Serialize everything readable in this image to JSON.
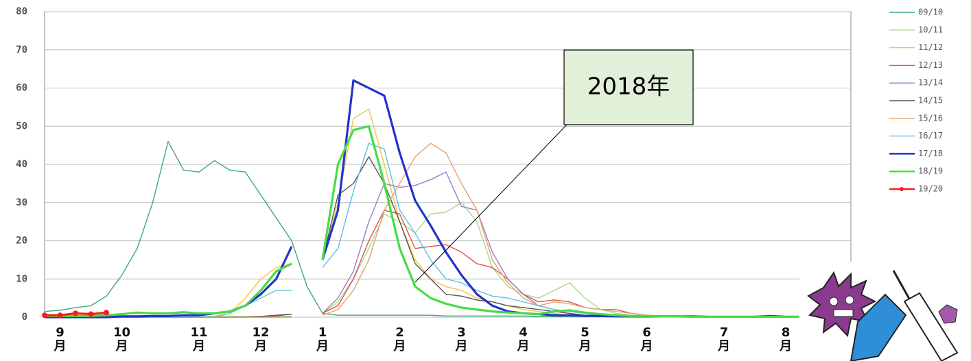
{
  "chart_data": {
    "type": "line",
    "categories": [
      null,
      "9\n月",
      null,
      null,
      null,
      "10\n月",
      null,
      null,
      null,
      null,
      "11\n月",
      null,
      null,
      null,
      "12\n月",
      null,
      null,
      null,
      "1\n月",
      null,
      null,
      null,
      null,
      "2\n月",
      null,
      null,
      null,
      "3\n月",
      null,
      null,
      null,
      "4\n月",
      null,
      null,
      null,
      "5\n月",
      null,
      null,
      null,
      "6\n月",
      null,
      null,
      null,
      null,
      "7\n月",
      null,
      null,
      null,
      "8\n月",
      null,
      null,
      null,
      null
    ],
    "ylim": [
      0,
      80
    ],
    "yticks": [
      0,
      10,
      20,
      30,
      40,
      50,
      60,
      70,
      80
    ],
    "grid": true,
    "annotation": "2018年",
    "series": [
      {
        "name": "09/10",
        "color": "#3aa97f",
        "line_width": 1.4,
        "values": [
          1.5,
          1.8,
          2.5,
          3,
          5.5,
          11,
          18,
          30,
          46,
          38.5,
          38,
          41,
          38.5,
          38,
          32,
          26,
          20,
          8,
          1,
          0.5,
          0.5,
          0.5,
          0.5,
          0.5,
          0.5,
          0.5,
          0.3,
          0.3,
          0.3,
          0.3,
          0.3,
          0.3,
          0.2,
          0.2,
          0.2,
          0.2,
          0.2,
          0.2,
          0.2,
          0.2,
          0.2,
          0.2,
          0.2,
          0.1,
          0.1,
          0.1,
          0.1,
          0.1,
          0.1,
          0.1,
          0.1,
          0.1,
          0.1
        ]
      },
      {
        "name": "10/11",
        "color": "#a8d88a",
        "line_width": 1.4,
        "values": [
          0.2,
          0.2,
          0.2,
          0.2,
          0.2,
          0.2,
          0.2,
          0.2,
          0.2,
          0.2,
          0.2,
          0.2,
          0.2,
          0.2,
          0.2,
          0.2,
          0.2,
          null,
          1,
          4,
          10,
          18,
          27,
          25,
          22,
          27,
          27.5,
          30,
          25,
          13,
          8,
          6,
          5,
          7,
          9,
          5,
          2,
          1,
          0.5,
          0.3,
          0.3,
          0.2,
          0.2,
          0.2,
          0.2,
          0.1,
          0.1,
          0.1,
          0.1,
          0.1,
          0.1,
          0.1,
          0.1
        ]
      },
      {
        "name": "11/12",
        "color": "#f5c242",
        "line_width": 1.4,
        "values": [
          0,
          0,
          0,
          0,
          0,
          0,
          0,
          0,
          0,
          0,
          0,
          0.3,
          1,
          5,
          10,
          13,
          14,
          null,
          15,
          30,
          52,
          54.5,
          40,
          25,
          15,
          10,
          8,
          7,
          5,
          4,
          3,
          2,
          1.5,
          1,
          0.5,
          0.5,
          0.3,
          0.3,
          0.2,
          0.2,
          0.2,
          0.2,
          0.1,
          0.1,
          0.1,
          0.1,
          0.1,
          0.1,
          0.1,
          0.1,
          0.1,
          0.1,
          0.1
        ]
      },
      {
        "name": "12/13",
        "color": "#d9534f",
        "line_width": 1.4,
        "values": [
          0,
          0,
          0,
          0,
          0,
          0,
          0,
          0,
          0,
          0,
          0,
          0,
          0,
          0,
          0.2,
          0.3,
          0.8,
          null,
          1,
          3,
          10,
          20,
          28,
          27,
          18,
          18.5,
          19,
          17,
          14,
          13,
          10,
          6,
          4,
          4.5,
          4,
          2.5,
          2,
          2,
          1,
          0.5,
          0.3,
          0.3,
          0.2,
          0.2,
          0.2,
          0.1,
          0.1,
          0.1,
          0.1,
          0.1,
          0.1,
          0.1,
          0.1
        ]
      },
      {
        "name": "13/14",
        "color": "#a07cc5",
        "line_width": 1.4,
        "values": [
          0,
          0,
          0,
          0,
          0,
          0,
          0,
          0,
          0,
          0,
          0,
          0,
          0,
          0,
          0,
          0,
          0,
          null,
          1,
          5,
          12,
          25,
          35,
          34,
          34.5,
          36,
          38,
          29,
          28,
          17,
          10,
          6,
          3,
          2,
          1.5,
          1,
          0.5,
          0.3,
          0.3,
          0.2,
          0.2,
          0.2,
          0.1,
          0.1,
          0.1,
          0.1,
          0.1,
          0.1,
          0.1,
          0.1,
          0.1,
          0.1,
          0.1
        ]
      },
      {
        "name": "14/15",
        "color": "#555555",
        "line_width": 1.4,
        "values": [
          0,
          0,
          0,
          0,
          0,
          0,
          0,
          0,
          0,
          0,
          0,
          0,
          0,
          0,
          0.2,
          0.5,
          0.8,
          null,
          15,
          32,
          35,
          42,
          35,
          25,
          14,
          10,
          6,
          5.5,
          4.5,
          4,
          3,
          2.5,
          2,
          1.5,
          1,
          0.5,
          0.5,
          0.3,
          0.3,
          0.2,
          0.2,
          0.2,
          0.1,
          0.1,
          0.1,
          0.1,
          0.1,
          0.1,
          0.1,
          0.1,
          0.1,
          0.1,
          0.1
        ]
      },
      {
        "name": "15/16",
        "color": "#e8a06a",
        "line_width": 1.4,
        "values": [
          0,
          0,
          0,
          0,
          0,
          0,
          0,
          0,
          0,
          0,
          0,
          0,
          0,
          0,
          0,
          0,
          0,
          null,
          0.5,
          2,
          7,
          15,
          28,
          35,
          42,
          45.5,
          43,
          35,
          28,
          15,
          9,
          5,
          3,
          4,
          3.5,
          2.5,
          2,
          1.5,
          1,
          0.5,
          0.3,
          0.3,
          0.2,
          0.2,
          0.2,
          0.1,
          0.1,
          0.1,
          0.1,
          0.1,
          0.1,
          0.1,
          0.1
        ]
      },
      {
        "name": "16/17",
        "color": "#5bc0e0",
        "line_width": 1.4,
        "values": [
          0,
          0,
          0,
          0,
          0,
          0,
          0,
          0,
          0,
          0,
          0,
          0,
          1,
          3,
          5,
          7,
          7,
          null,
          13,
          18,
          33,
          45.5,
          44,
          28,
          22,
          15,
          10,
          9,
          7,
          5.5,
          5,
          4,
          3,
          2,
          1.5,
          1,
          0.5,
          0.3,
          0.3,
          0.2,
          0.2,
          0.2,
          0.1,
          0.1,
          0.1,
          0.1,
          0.1,
          0.1,
          0.1,
          0.1,
          0.1,
          0.1,
          0.1
        ]
      },
      {
        "name": "17/18",
        "color": "#2233cc",
        "line_width": 3.2,
        "values": [
          0,
          0,
          0,
          0,
          0,
          0.2,
          0.2,
          0.3,
          0.3,
          0.5,
          0.5,
          1,
          1.5,
          3,
          6,
          10,
          18.5,
          null,
          15,
          28,
          62,
          60,
          58,
          43,
          30.5,
          24,
          17,
          11,
          6,
          3,
          1.5,
          1,
          0.8,
          0.5,
          0.5,
          0.3,
          0.3,
          0.2,
          0.2,
          0.2,
          0.2,
          0.2,
          0.2,
          0.1,
          0.1,
          0.1,
          0.1,
          0.3,
          0.1,
          0.1,
          0.1,
          0.1,
          0.1
        ]
      },
      {
        "name": "18/19",
        "color": "#44dd44",
        "line_width": 3.2,
        "values": [
          0.3,
          0.3,
          0.3,
          0.3,
          0.5,
          0.8,
          1.2,
          1,
          1,
          1.3,
          1,
          1,
          1.5,
          3,
          7,
          12,
          14,
          null,
          15,
          40,
          49,
          50,
          35,
          18,
          8,
          5,
          3.5,
          2.5,
          2,
          1.5,
          1.2,
          1,
          0.8,
          1.5,
          1.8,
          1.2,
          0.8,
          0.5,
          0.3,
          0.3,
          0.2,
          0.2,
          0.1,
          0.1,
          0.1,
          0.1,
          0.1,
          0.1,
          0.1,
          0.1,
          0.1,
          0.1,
          0.1
        ]
      },
      {
        "name": "19/20",
        "color": "#ff1a1a",
        "line_width": 3.2,
        "markers": true,
        "values": [
          0.5,
          0.5,
          1,
          0.8,
          1.2,
          null,
          null,
          null,
          null,
          null,
          null,
          null,
          null,
          null,
          null,
          null,
          null,
          null,
          null,
          null,
          null,
          null,
          null,
          null,
          null,
          null,
          null,
          null,
          null,
          null,
          null,
          null,
          null,
          null,
          null,
          null,
          null,
          null,
          null,
          null,
          null,
          null,
          null,
          null,
          null,
          null,
          null,
          null,
          null,
          null,
          null,
          null,
          null
        ]
      }
    ]
  }
}
